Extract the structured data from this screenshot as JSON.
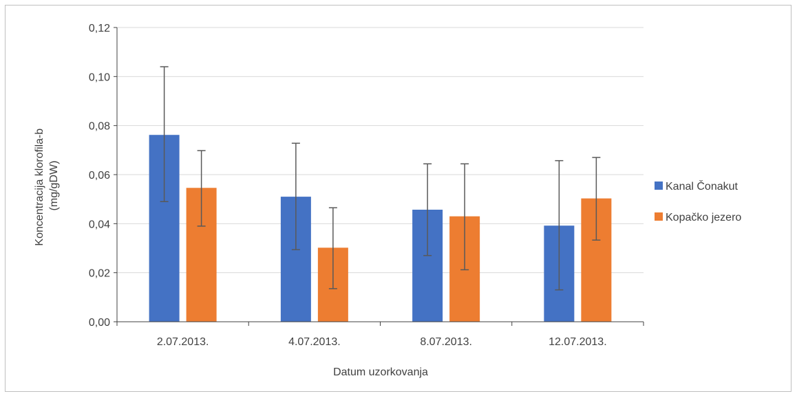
{
  "chart_data": {
    "type": "bar",
    "categories": [
      "2.07.2013.",
      "4.07.2013.",
      "8.07.2013.",
      "12.07.2013."
    ],
    "series": [
      {
        "name": "Kanal Čonakut",
        "color": "#4472c4",
        "values": [
          0.0762,
          0.051,
          0.0457,
          0.0392
        ],
        "error_low": [
          0.049,
          0.0294,
          0.027,
          0.013
        ],
        "error_high": [
          0.104,
          0.0728,
          0.0644,
          0.0657
        ]
      },
      {
        "name": "Kopačko jezero",
        "color": "#ed7d31",
        "values": [
          0.0546,
          0.0302,
          0.043,
          0.0503
        ],
        "error_low": [
          0.039,
          0.0135,
          0.0212,
          0.0333
        ],
        "error_high": [
          0.0698,
          0.0465,
          0.0644,
          0.067
        ]
      }
    ],
    "xlabel": "Datum uzorkovanja",
    "ylabel_line1": "Koncentracija klorofila-b",
    "ylabel_line2": "(mg/gDW)",
    "ylim": [
      0,
      0.12
    ],
    "y_ticks": [
      "0,00",
      "0,02",
      "0,04",
      "0,06",
      "0,08",
      "0,10",
      "0,12"
    ],
    "y_tick_values": [
      0,
      0.02,
      0.04,
      0.06,
      0.08,
      0.1,
      0.12
    ],
    "grid": true,
    "legend_position": "right"
  }
}
